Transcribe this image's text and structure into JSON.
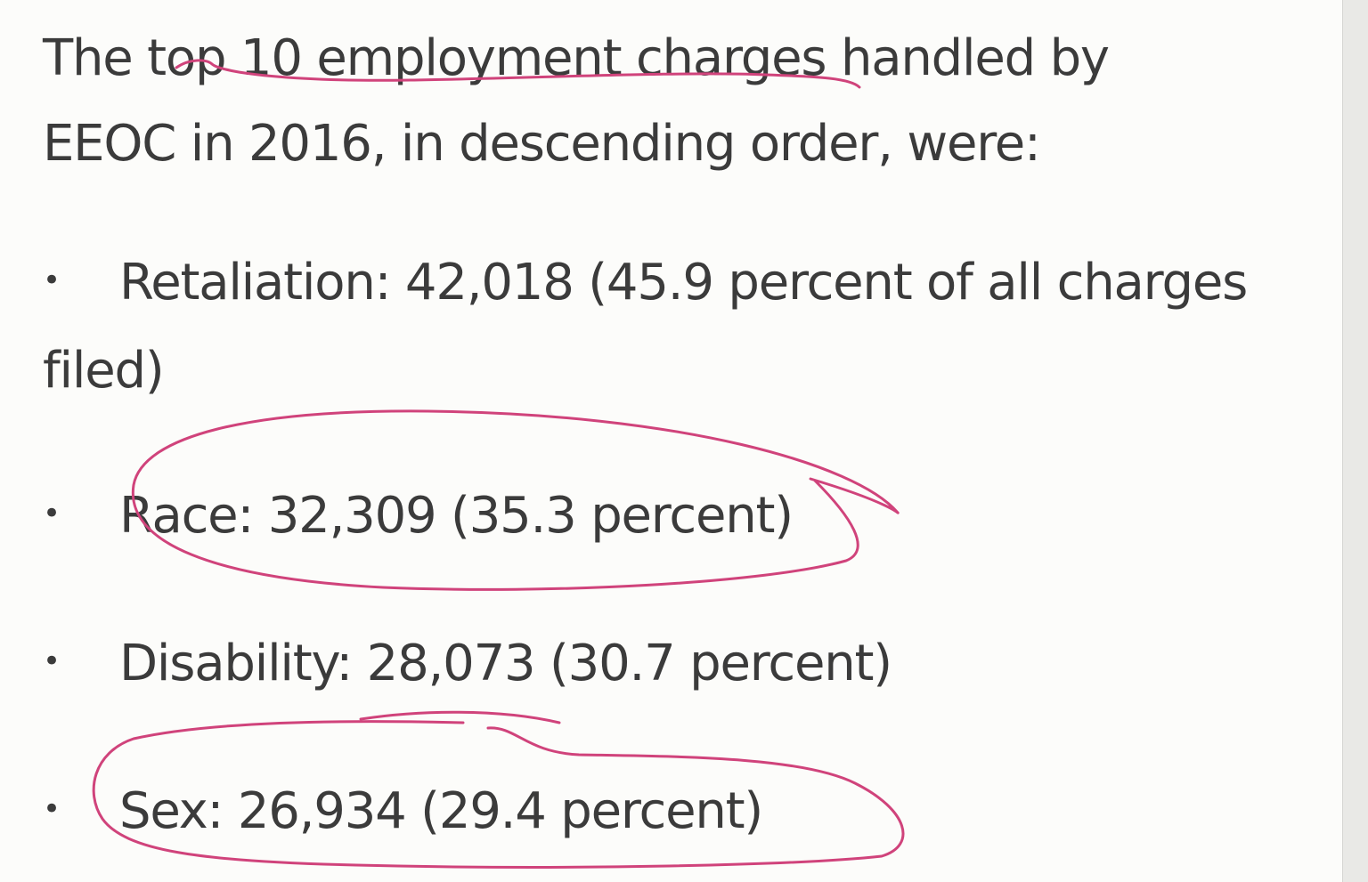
{
  "intro": {
    "line1": "The top 10 employment charges handled by",
    "line2": "EEOC in 2016, in descending order, were:"
  },
  "list": [
    {
      "bullet": "•",
      "text_line1": "Retaliation: 42,018 (45.9 percent of all charges",
      "text_line2": "filed)"
    },
    {
      "bullet": "•",
      "text": "Race: 32,309 (35.3 percent)"
    },
    {
      "bullet": "•",
      "text": "Disability: 28,073 (30.7 percent)"
    },
    {
      "bullet": "•",
      "text": "Sex: 26,934 (29.4 percent)"
    }
  ],
  "annotation": {
    "ink_color": "#d0437b"
  }
}
